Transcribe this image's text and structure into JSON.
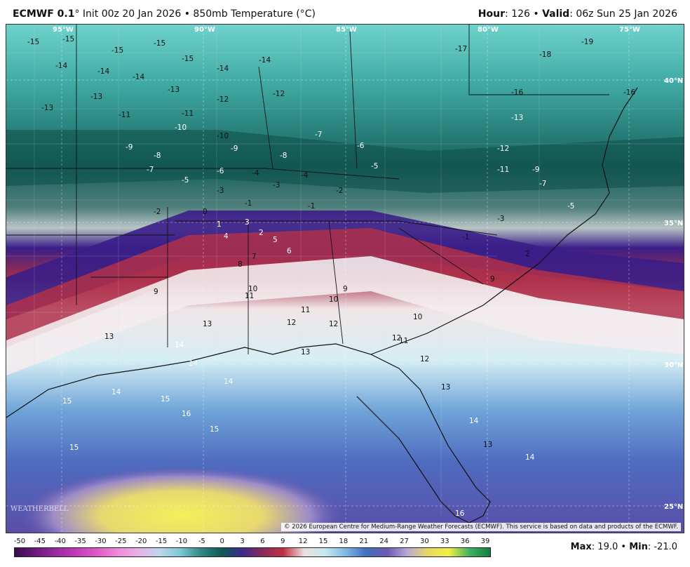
{
  "header": {
    "model": "ECMWF 0.1",
    "model_suffix": "° Init 00z 20 Jan 2026 • 850mb Temperature (°C)",
    "hour_label": "Hour",
    "hour_value": ": 126 •",
    "valid_label": "Valid",
    "valid_value": ": 06z Sun 25 Jan 2026"
  },
  "longitudes": [
    "95°W",
    "90°W",
    "85°W",
    "80°W",
    "75°W"
  ],
  "latitudes": [
    "40°N",
    "35°N",
    "30°N",
    "25°N"
  ],
  "copyright": "© 2026 European Centre for Medium-Range Weather Forecasts (ECMWF). This service is based on data and products of the ECMWF.",
  "logo": "WEATHERBELL",
  "colorbar": {
    "ticks": [
      "-50",
      "-45",
      "-40",
      "-35",
      "-30",
      "-25",
      "-20",
      "-15",
      "-10",
      "-5",
      "0",
      "3",
      "6",
      "9",
      "12",
      "15",
      "18",
      "21",
      "24",
      "27",
      "30",
      "33",
      "36",
      "39"
    ],
    "colors": [
      "#3a0b52",
      "#6a1a7a",
      "#9a2aa0",
      "#c43ab8",
      "#e05ac8",
      "#f08ad8",
      "#e8b0e8",
      "#bcd8ec",
      "#7ec6d6",
      "#2f8a86",
      "#0f5a56",
      "#3a2a8a",
      "#8a2a5a",
      "#c23040",
      "#e8e0e0",
      "#c8e8f0",
      "#80b8e0",
      "#4070c0",
      "#6a5ab0",
      "#b8a8d8",
      "#e8d860",
      "#f0f040",
      "#40b060",
      "#108040"
    ],
    "max_label": "Max",
    "max_value": ": 19.0 •",
    "min_label": "Min",
    "min_value": ": -21.0"
  },
  "temps": [
    {
      "v": "-15",
      "c": "dark"
    },
    {
      "v": "-15",
      "c": "dark"
    },
    {
      "v": "-15",
      "c": "dark"
    },
    {
      "v": "-15",
      "c": "dark"
    },
    {
      "v": "-15",
      "c": "dark"
    },
    {
      "v": "-14",
      "c": "dark"
    },
    {
      "v": "-14",
      "c": "dark"
    },
    {
      "v": "-14",
      "c": "dark"
    },
    {
      "v": "-14",
      "c": "dark"
    },
    {
      "v": "-14",
      "c": "dark"
    },
    {
      "v": "-13",
      "c": "dark"
    },
    {
      "v": "-13",
      "c": "dark"
    },
    {
      "v": "-13",
      "c": "dark"
    },
    {
      "v": "-12",
      "c": "dark"
    },
    {
      "v": "-12",
      "c": "dark"
    },
    {
      "v": "-11",
      "c": "dark"
    },
    {
      "v": "-11",
      "c": "dark"
    },
    {
      "v": "-10",
      "c": "dark"
    },
    {
      "v": "-10",
      "c": "light"
    },
    {
      "v": "-9",
      "c": "light"
    },
    {
      "v": "-9",
      "c": "light"
    },
    {
      "v": "-8",
      "c": "light"
    },
    {
      "v": "-8",
      "c": "light"
    },
    {
      "v": "-7",
      "c": "light"
    },
    {
      "v": "-7",
      "c": "light"
    },
    {
      "v": "-6",
      "c": "light"
    },
    {
      "v": "-6",
      "c": "light"
    },
    {
      "v": "-5",
      "c": "light"
    },
    {
      "v": "-5",
      "c": "light"
    },
    {
      "v": "-4",
      "c": "dark"
    },
    {
      "v": "-4",
      "c": "dark"
    },
    {
      "v": "-3",
      "c": "dark"
    },
    {
      "v": "-3",
      "c": "dark"
    },
    {
      "v": "-2",
      "c": "dark"
    },
    {
      "v": "-2",
      "c": "dark"
    },
    {
      "v": "-1",
      "c": "dark"
    },
    {
      "v": "-1",
      "c": "dark"
    },
    {
      "v": "0",
      "c": "dark"
    },
    {
      "v": "1",
      "c": "light"
    },
    {
      "v": "2",
      "c": "light"
    },
    {
      "v": "3",
      "c": "light"
    },
    {
      "v": "4",
      "c": "light"
    },
    {
      "v": "5",
      "c": "light"
    },
    {
      "v": "6",
      "c": "light"
    },
    {
      "v": "7",
      "c": "dark"
    },
    {
      "v": "8",
      "c": "dark"
    },
    {
      "v": "9",
      "c": "dark"
    },
    {
      "v": "9",
      "c": "dark"
    },
    {
      "v": "10",
      "c": "dark"
    },
    {
      "v": "10",
      "c": "dark"
    },
    {
      "v": "11",
      "c": "dark"
    },
    {
      "v": "11",
      "c": "dark"
    },
    {
      "v": "12",
      "c": "dark"
    },
    {
      "v": "12",
      "c": "dark"
    },
    {
      "v": "12",
      "c": "dark"
    },
    {
      "v": "13",
      "c": "dark"
    },
    {
      "v": "13",
      "c": "dark"
    },
    {
      "v": "13",
      "c": "dark"
    },
    {
      "v": "14",
      "c": "light"
    },
    {
      "v": "14",
      "c": "light"
    },
    {
      "v": "14",
      "c": "light"
    },
    {
      "v": "14",
      "c": "light"
    },
    {
      "v": "15",
      "c": "light"
    },
    {
      "v": "15",
      "c": "light"
    },
    {
      "v": "15",
      "c": "light"
    },
    {
      "v": "15",
      "c": "light"
    },
    {
      "v": "16",
      "c": "light"
    },
    {
      "v": "16",
      "c": "light"
    },
    {
      "v": "12",
      "c": "dark"
    },
    {
      "v": "10",
      "c": "dark"
    },
    {
      "v": "-16",
      "c": "dark"
    },
    {
      "v": "-17",
      "c": "dark"
    },
    {
      "v": "-18",
      "c": "dark"
    },
    {
      "v": "-19",
      "c": "dark"
    },
    {
      "v": "-16",
      "c": "dark"
    },
    {
      "v": "-13",
      "c": "light"
    },
    {
      "v": "-12",
      "c": "light"
    },
    {
      "v": "-11",
      "c": "light"
    },
    {
      "v": "-9",
      "c": "light"
    },
    {
      "v": "-7",
      "c": "light"
    },
    {
      "v": "-5",
      "c": "light"
    },
    {
      "v": "-3",
      "c": "dark"
    },
    {
      "v": "-1",
      "c": "dark"
    },
    {
      "v": "2",
      "c": "dark"
    },
    {
      "v": "9",
      "c": "dark"
    },
    {
      "v": "13",
      "c": "dark"
    },
    {
      "v": "14",
      "c": "light"
    },
    {
      "v": "14",
      "c": "light"
    },
    {
      "v": "13",
      "c": "dark"
    },
    {
      "v": "11",
      "c": "dark"
    }
  ]
}
